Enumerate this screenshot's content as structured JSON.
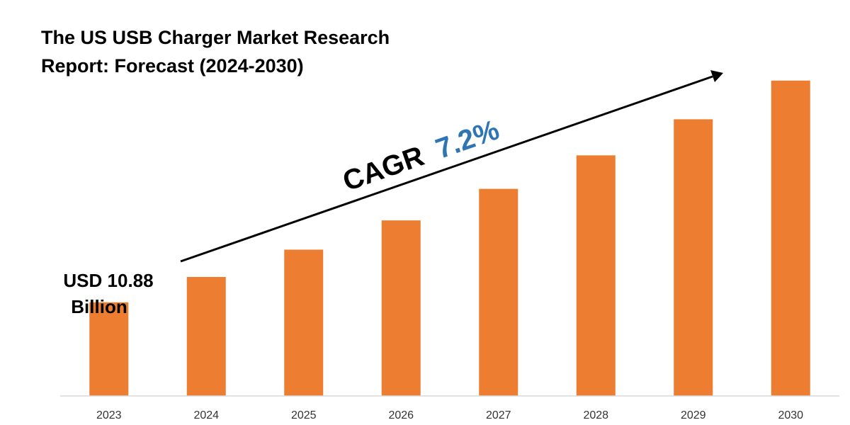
{
  "chart_data": {
    "type": "bar",
    "title_lines": [
      "The US USB Charger Market Research",
      "Report: Forecast (2024-2030)"
    ],
    "categories": [
      "2023",
      "2024",
      "2025",
      "2026",
      "2027",
      "2028",
      "2029",
      "2030"
    ],
    "series": [
      {
        "values": [
          10.88,
          11.66,
          12.5,
          13.4,
          14.37,
          15.4,
          16.51,
          17.7
        ],
        "color": "#ED7D31"
      }
    ],
    "start_label_lines": [
      "USD 10.88",
      "Billion"
    ],
    "cagr": {
      "prefix": "CAGR",
      "value": "7.2%",
      "prefix_color": "#000000",
      "value_color": "#2E75B6"
    },
    "ylim": [
      8,
      18
    ],
    "grid": false,
    "legend": "none",
    "axis_color": "#D9D9D9",
    "arrow_color": "#000000"
  }
}
